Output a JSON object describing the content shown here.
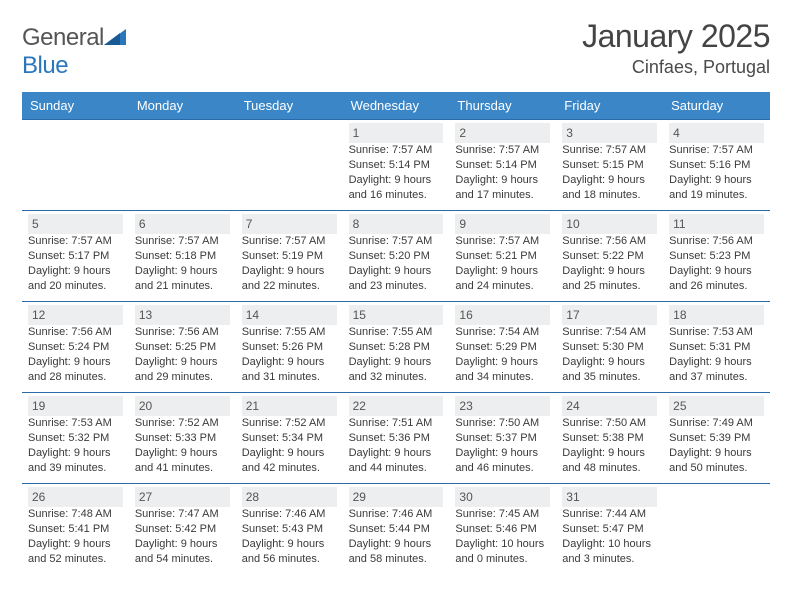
{
  "brand": {
    "name_a": "General",
    "name_b": "Blue"
  },
  "title": "January 2025",
  "subtitle": "Cinfaes, Portugal",
  "colors": {
    "header_bg": "#3b86c7",
    "header_text": "#ffffff",
    "week_border": "#2b6aa8",
    "daynum_bg": "#eceeef",
    "daynum_text": "#555555",
    "body_text": "#3a3a3a",
    "title_text": "#444444",
    "logo_gray": "#666666",
    "logo_blue": "#2b77bb"
  },
  "day_headers": [
    "Sunday",
    "Monday",
    "Tuesday",
    "Wednesday",
    "Thursday",
    "Friday",
    "Saturday"
  ],
  "weeks": [
    [
      null,
      null,
      null,
      {
        "n": "1",
        "sr": "7:57 AM",
        "ss": "5:14 PM",
        "dl": "9 hours and 16 minutes."
      },
      {
        "n": "2",
        "sr": "7:57 AM",
        "ss": "5:14 PM",
        "dl": "9 hours and 17 minutes."
      },
      {
        "n": "3",
        "sr": "7:57 AM",
        "ss": "5:15 PM",
        "dl": "9 hours and 18 minutes."
      },
      {
        "n": "4",
        "sr": "7:57 AM",
        "ss": "5:16 PM",
        "dl": "9 hours and 19 minutes."
      }
    ],
    [
      {
        "n": "5",
        "sr": "7:57 AM",
        "ss": "5:17 PM",
        "dl": "9 hours and 20 minutes."
      },
      {
        "n": "6",
        "sr": "7:57 AM",
        "ss": "5:18 PM",
        "dl": "9 hours and 21 minutes."
      },
      {
        "n": "7",
        "sr": "7:57 AM",
        "ss": "5:19 PM",
        "dl": "9 hours and 22 minutes."
      },
      {
        "n": "8",
        "sr": "7:57 AM",
        "ss": "5:20 PM",
        "dl": "9 hours and 23 minutes."
      },
      {
        "n": "9",
        "sr": "7:57 AM",
        "ss": "5:21 PM",
        "dl": "9 hours and 24 minutes."
      },
      {
        "n": "10",
        "sr": "7:56 AM",
        "ss": "5:22 PM",
        "dl": "9 hours and 25 minutes."
      },
      {
        "n": "11",
        "sr": "7:56 AM",
        "ss": "5:23 PM",
        "dl": "9 hours and 26 minutes."
      }
    ],
    [
      {
        "n": "12",
        "sr": "7:56 AM",
        "ss": "5:24 PM",
        "dl": "9 hours and 28 minutes."
      },
      {
        "n": "13",
        "sr": "7:56 AM",
        "ss": "5:25 PM",
        "dl": "9 hours and 29 minutes."
      },
      {
        "n": "14",
        "sr": "7:55 AM",
        "ss": "5:26 PM",
        "dl": "9 hours and 31 minutes."
      },
      {
        "n": "15",
        "sr": "7:55 AM",
        "ss": "5:28 PM",
        "dl": "9 hours and 32 minutes."
      },
      {
        "n": "16",
        "sr": "7:54 AM",
        "ss": "5:29 PM",
        "dl": "9 hours and 34 minutes."
      },
      {
        "n": "17",
        "sr": "7:54 AM",
        "ss": "5:30 PM",
        "dl": "9 hours and 35 minutes."
      },
      {
        "n": "18",
        "sr": "7:53 AM",
        "ss": "5:31 PM",
        "dl": "9 hours and 37 minutes."
      }
    ],
    [
      {
        "n": "19",
        "sr": "7:53 AM",
        "ss": "5:32 PM",
        "dl": "9 hours and 39 minutes."
      },
      {
        "n": "20",
        "sr": "7:52 AM",
        "ss": "5:33 PM",
        "dl": "9 hours and 41 minutes."
      },
      {
        "n": "21",
        "sr": "7:52 AM",
        "ss": "5:34 PM",
        "dl": "9 hours and 42 minutes."
      },
      {
        "n": "22",
        "sr": "7:51 AM",
        "ss": "5:36 PM",
        "dl": "9 hours and 44 minutes."
      },
      {
        "n": "23",
        "sr": "7:50 AM",
        "ss": "5:37 PM",
        "dl": "9 hours and 46 minutes."
      },
      {
        "n": "24",
        "sr": "7:50 AM",
        "ss": "5:38 PM",
        "dl": "9 hours and 48 minutes."
      },
      {
        "n": "25",
        "sr": "7:49 AM",
        "ss": "5:39 PM",
        "dl": "9 hours and 50 minutes."
      }
    ],
    [
      {
        "n": "26",
        "sr": "7:48 AM",
        "ss": "5:41 PM",
        "dl": "9 hours and 52 minutes."
      },
      {
        "n": "27",
        "sr": "7:47 AM",
        "ss": "5:42 PM",
        "dl": "9 hours and 54 minutes."
      },
      {
        "n": "28",
        "sr": "7:46 AM",
        "ss": "5:43 PM",
        "dl": "9 hours and 56 minutes."
      },
      {
        "n": "29",
        "sr": "7:46 AM",
        "ss": "5:44 PM",
        "dl": "9 hours and 58 minutes."
      },
      {
        "n": "30",
        "sr": "7:45 AM",
        "ss": "5:46 PM",
        "dl": "10 hours and 0 minutes."
      },
      {
        "n": "31",
        "sr": "7:44 AM",
        "ss": "5:47 PM",
        "dl": "10 hours and 3 minutes."
      },
      null
    ]
  ],
  "labels": {
    "sunrise": "Sunrise:",
    "sunset": "Sunset:",
    "daylight": "Daylight:"
  }
}
